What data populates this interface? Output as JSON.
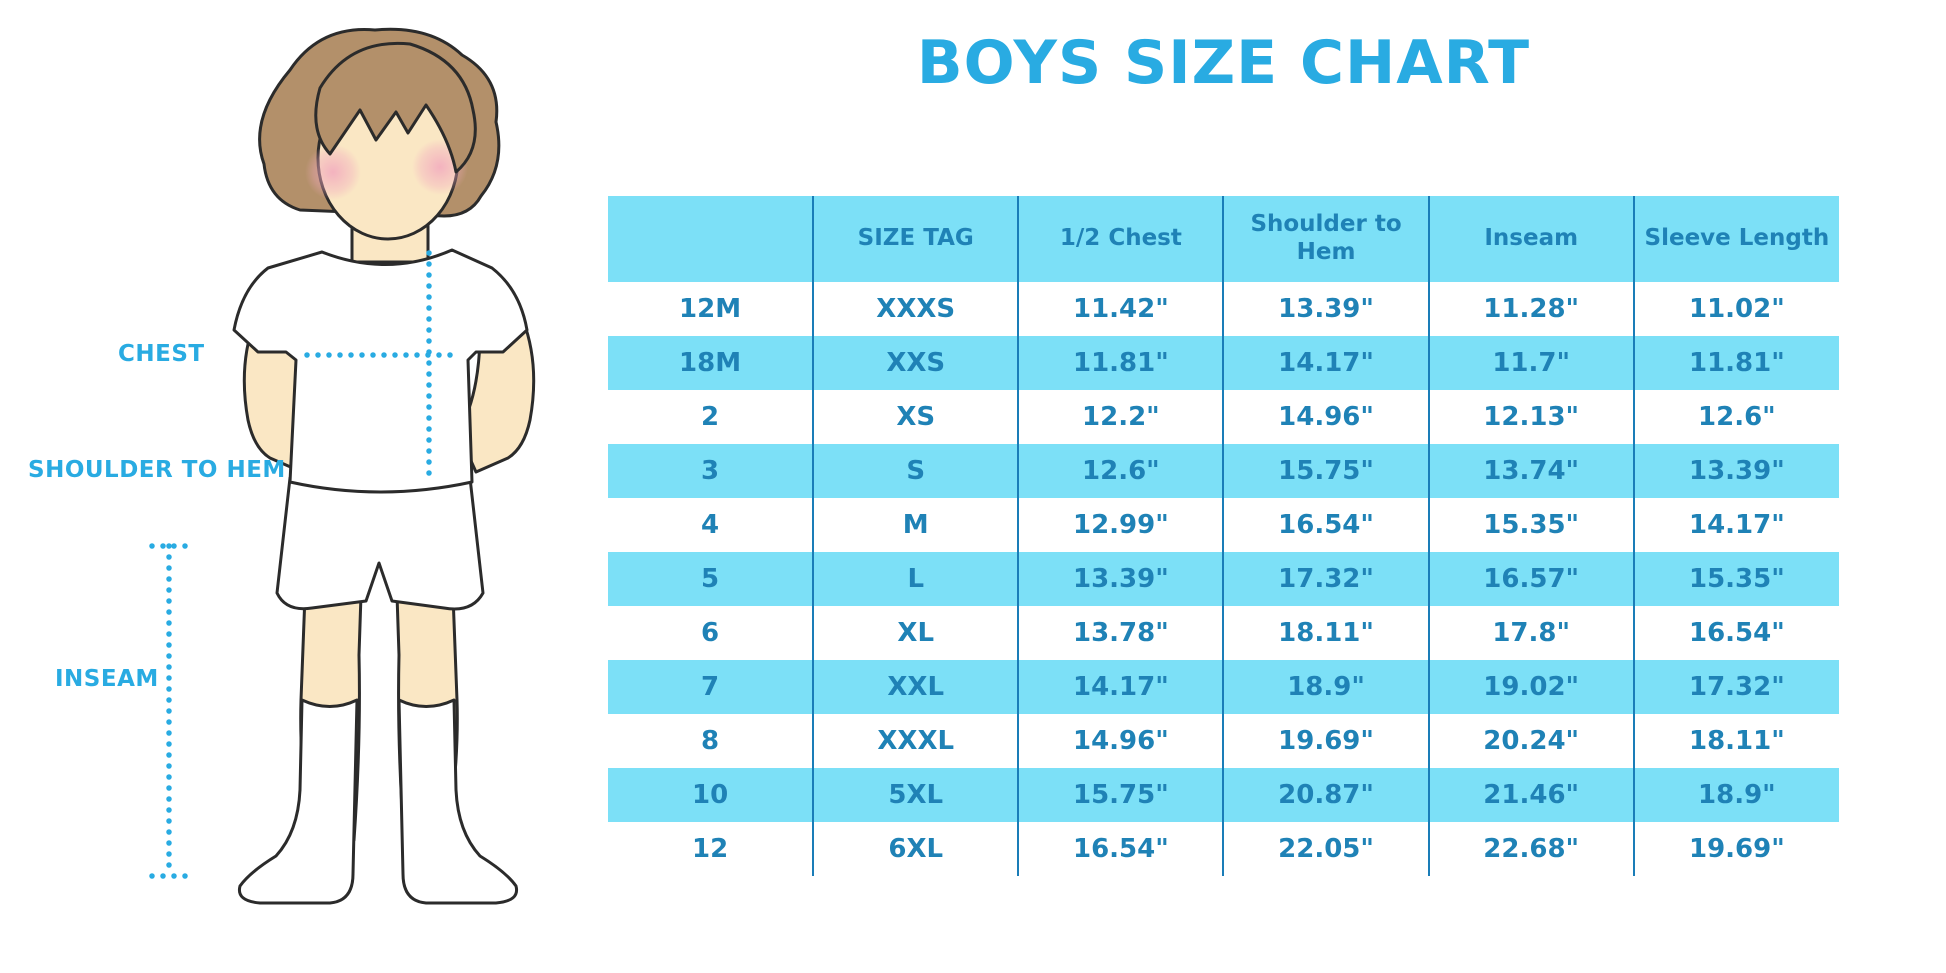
{
  "title": "BOYS SIZE CHART",
  "figure_labels": {
    "chest": "CHEST",
    "shoulder_to_hem": "SHOULDER TO HEM",
    "inseam": "INSEAM"
  },
  "colors": {
    "title_blue": "#29ABE2",
    "label_blue": "#29ABE2",
    "stripe": "#7CE0F7",
    "cell_text": "#1F82B6",
    "divider": "#1A7DB8",
    "skin": "#FAE7C4",
    "hair": "#B3906A",
    "blush": "#F2A9BE"
  },
  "chart_data": {
    "type": "table",
    "title": "BOYS SIZE CHART",
    "units": "inches",
    "columns": [
      "",
      "SIZE TAG",
      "1/2 Chest",
      "Shoulder to Hem",
      "Inseam",
      "Sleeve Length"
    ],
    "rows": [
      [
        "12M",
        "XXXS",
        "11.42\"",
        "13.39\"",
        "11.28\"",
        "11.02\""
      ],
      [
        "18M",
        "XXS",
        "11.81\"",
        "14.17\"",
        "11.7\"",
        "11.81\""
      ],
      [
        "2",
        "XS",
        "12.2\"",
        "14.96\"",
        "12.13\"",
        "12.6\""
      ],
      [
        "3",
        "S",
        "12.6\"",
        "15.75\"",
        "13.74\"",
        "13.39\""
      ],
      [
        "4",
        "M",
        "12.99\"",
        "16.54\"",
        "15.35\"",
        "14.17\""
      ],
      [
        "5",
        "L",
        "13.39\"",
        "17.32\"",
        "16.57\"",
        "15.35\""
      ],
      [
        "6",
        "XL",
        "13.78\"",
        "18.11\"",
        "17.8\"",
        "16.54\""
      ],
      [
        "7",
        "XXL",
        "14.17\"",
        "18.9\"",
        "19.02\"",
        "17.32\""
      ],
      [
        "8",
        "XXXL",
        "14.96\"",
        "19.69\"",
        "20.24\"",
        "18.11\""
      ],
      [
        "10",
        "5XL",
        "15.75\"",
        "20.87\"",
        "21.46\"",
        "18.9\""
      ],
      [
        "12",
        "6XL",
        "16.54\"",
        "22.05\"",
        "22.68\"",
        "19.69\""
      ]
    ],
    "layout_hints": {
      "striping": "rows 18M, 3, 5, 7, 10 highlighted with light cyan stripe",
      "grid": "vertical dividers only, no horizontal rules"
    }
  }
}
